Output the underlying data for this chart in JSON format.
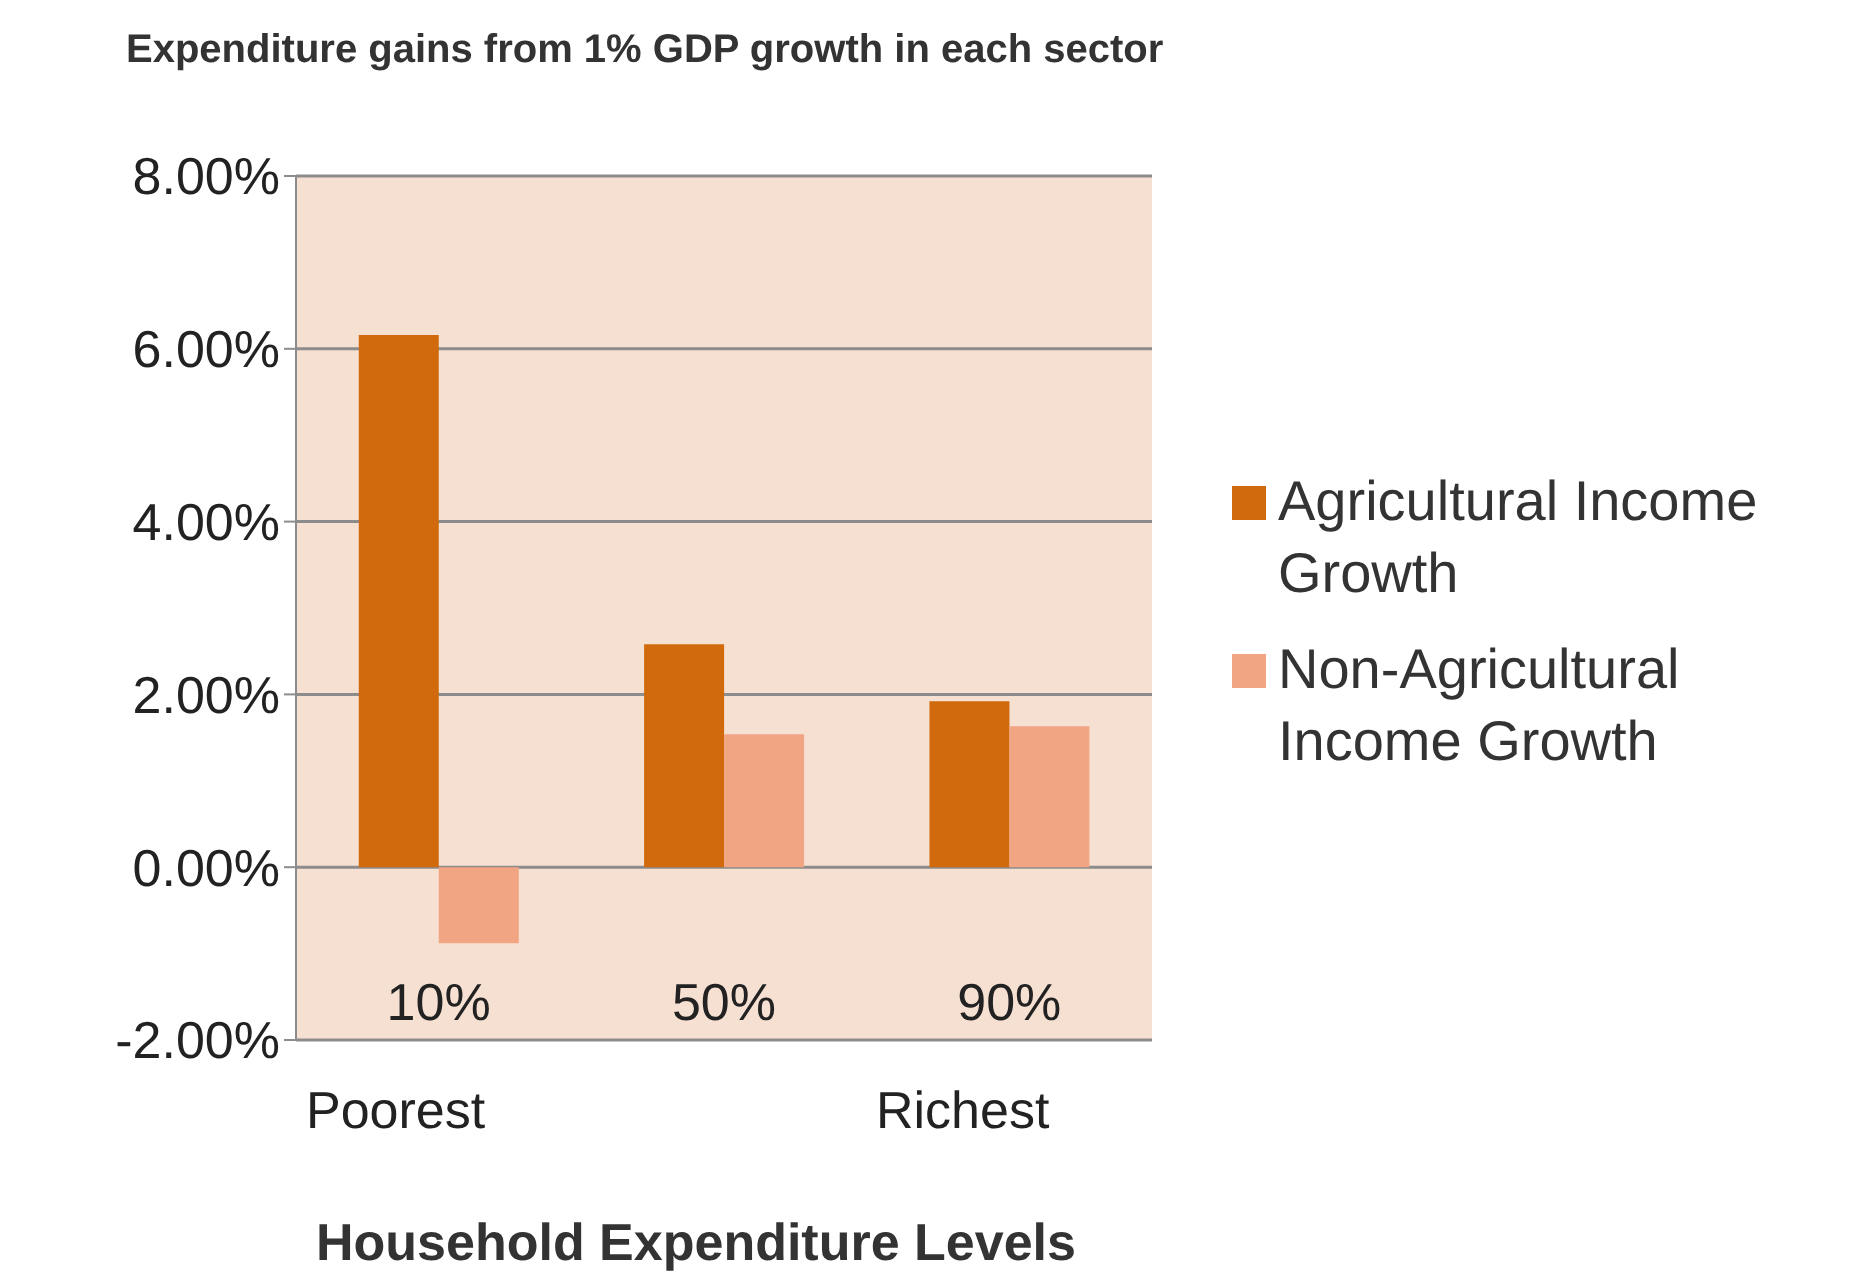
{
  "chart_data": {
    "type": "bar",
    "title": "Expenditure gains from 1% GDP growth in each sector",
    "xlabel": "Household Expenditure Levels",
    "categories": [
      "10%",
      "50%",
      "90%"
    ],
    "series": [
      {
        "name": "Agricultural Income Growth",
        "color": "#d06a0c",
        "values": [
          6.16,
          2.58,
          1.92
        ]
      },
      {
        "name": "Non-Agricultural Income Growth",
        "color": "#f2a582",
        "values": [
          -0.88,
          1.54,
          1.63
        ]
      }
    ],
    "ylim": [
      -2,
      8
    ],
    "yticks": [
      {
        "value": -2,
        "label": "-2.00%"
      },
      {
        "value": 0,
        "label": "0.00%"
      },
      {
        "value": 2,
        "label": "2.00%"
      },
      {
        "value": 4,
        "label": "4.00%"
      },
      {
        "value": 6,
        "label": "6.00%"
      },
      {
        "value": 8,
        "label": "8.00%"
      }
    ],
    "grid": "y",
    "legend": "right",
    "annotations": [
      "Poorest",
      "Richest"
    ]
  }
}
